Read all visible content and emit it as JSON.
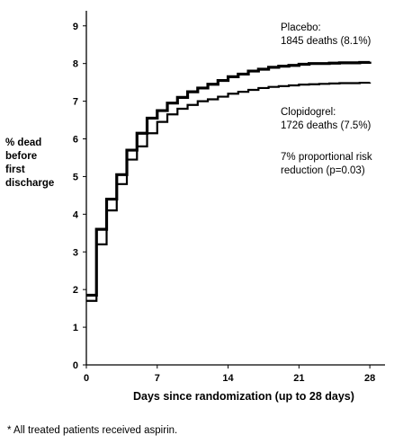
{
  "chart_data": {
    "type": "line",
    "title": "",
    "xlabel": "Days since randomization (up to 28 days)",
    "ylabel_lines": [
      "% dead",
      "before",
      "first",
      "discharge"
    ],
    "xticks": [
      0,
      7,
      14,
      21,
      28
    ],
    "yticks": [
      0,
      1,
      2,
      3,
      4,
      5,
      6,
      7,
      8,
      9
    ],
    "xlim": [
      0,
      29.5
    ],
    "ylim": [
      0,
      9.4
    ],
    "grid": false,
    "series": [
      {
        "name": "Placebo",
        "color": "#000000",
        "x": [
          0,
          1,
          2,
          3,
          4,
          5,
          6,
          7,
          8,
          9,
          10,
          11,
          12,
          13,
          14,
          15,
          16,
          17,
          18,
          19,
          20,
          21,
          22,
          23,
          24,
          25,
          26,
          27,
          28
        ],
        "y": [
          1.85,
          3.6,
          4.4,
          5.05,
          5.7,
          6.15,
          6.55,
          6.75,
          6.95,
          7.1,
          7.25,
          7.35,
          7.45,
          7.55,
          7.65,
          7.72,
          7.8,
          7.85,
          7.9,
          7.93,
          7.95,
          7.98,
          8.0,
          8.0,
          8.01,
          8.02,
          8.02,
          8.03,
          8.05
        ]
      },
      {
        "name": "Clopidogrel",
        "color": "#000000",
        "x": [
          0,
          1,
          2,
          3,
          4,
          5,
          6,
          7,
          8,
          9,
          10,
          11,
          12,
          13,
          14,
          15,
          16,
          17,
          18,
          19,
          20,
          21,
          22,
          23,
          24,
          25,
          26,
          27,
          28
        ],
        "y": [
          1.7,
          3.2,
          4.1,
          4.8,
          5.45,
          5.8,
          6.15,
          6.45,
          6.65,
          6.8,
          6.9,
          7.0,
          7.05,
          7.12,
          7.2,
          7.25,
          7.3,
          7.35,
          7.38,
          7.4,
          7.42,
          7.44,
          7.45,
          7.46,
          7.47,
          7.48,
          7.48,
          7.49,
          7.5
        ]
      }
    ],
    "annotations": {
      "placebo": [
        "Placebo:",
        "1845 deaths (8.1%)"
      ],
      "clopidogrel": [
        "Clopidogrel:",
        "1726 deaths (7.5%)"
      ],
      "risk": [
        "7% proportional risk",
        "reduction (p=0.03)"
      ]
    }
  },
  "footnote": "* All treated patients received aspirin."
}
